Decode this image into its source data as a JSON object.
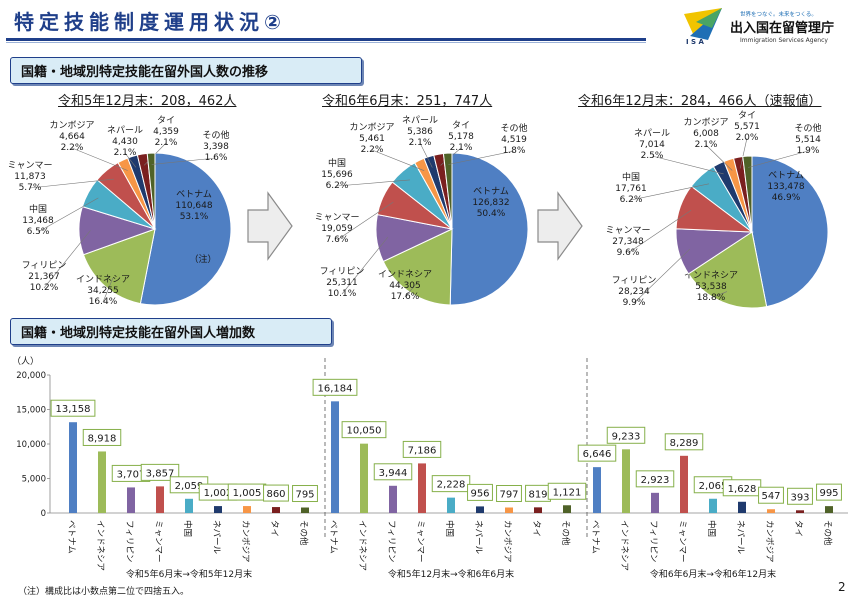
{
  "header": {
    "title": "特定技能制度運用状況②",
    "logo": {
      "letters": "I S A",
      "tagline": "世界をつなぐ。未来をつくる。",
      "name": "出入国在留管理庁",
      "english": "Immigration Services Agency"
    }
  },
  "section1_title": "国籍・地域別特定技能在留外国人数の推移",
  "section2_title": "国籍・地域別特定技能在留外国人増加数",
  "footnote": "（注）構成比は小数点第二位で四捨五入。",
  "page_number": "2",
  "colors": {
    "ベトナム": "#4f7fc3",
    "インドネシア": "#9dbb59",
    "フィリピン": "#8064a2",
    "ミャンマー": "#c0504d",
    "中国": "#4aacc6",
    "ネパール": "#1f3a6d",
    "カンボジア": "#f79646",
    "タイ": "#7a1f1f",
    "その他": "#4f6228"
  },
  "chart_data": [
    {
      "type": "pie",
      "title": "令和5年12月末：208，462人",
      "note": "（注）",
      "slices": [
        {
          "name": "ベトナム",
          "value": 110648,
          "share": "53.1%",
          "value_label": "110,648"
        },
        {
          "name": "インドネシア",
          "value": 34255,
          "share": "16.4%",
          "value_label": "34,255"
        },
        {
          "name": "フィリピン",
          "value": 21367,
          "share": "10.2%",
          "value_label": "21,367"
        },
        {
          "name": "中国",
          "value": 13468,
          "share": "6.5%",
          "value_label": "13,468"
        },
        {
          "name": "ミャンマー",
          "value": 11873,
          "share": "5.7%",
          "value_label": "11,873"
        },
        {
          "name": "カンボジア",
          "value": 4664,
          "share": "2.2%",
          "value_label": "4,664"
        },
        {
          "name": "ネパール",
          "value": 4430,
          "share": "2.1%",
          "value_label": "4,430"
        },
        {
          "name": "タイ",
          "value": 4359,
          "share": "2.1%",
          "value_label": "4,359"
        },
        {
          "name": "その他",
          "value": 3398,
          "share": "1.6%",
          "value_label": "3,398"
        }
      ]
    },
    {
      "type": "pie",
      "title": "令和6年6月末：251，747人",
      "slices": [
        {
          "name": "ベトナム",
          "value": 126832,
          "share": "50.4%",
          "value_label": "126,832"
        },
        {
          "name": "インドネシア",
          "value": 44305,
          "share": "17.6%",
          "value_label": "44,305"
        },
        {
          "name": "フィリピン",
          "value": 25311,
          "share": "10.1%",
          "value_label": "25,311"
        },
        {
          "name": "ミャンマー",
          "value": 19059,
          "share": "7.6%",
          "value_label": "19,059"
        },
        {
          "name": "中国",
          "value": 15696,
          "share": "6.2%",
          "value_label": "15,696"
        },
        {
          "name": "カンボジア",
          "value": 5461,
          "share": "2.2%",
          "value_label": "5,461"
        },
        {
          "name": "ネパール",
          "value": 5386,
          "share": "2.1%",
          "value_label": "5,386"
        },
        {
          "name": "タイ",
          "value": 5178,
          "share": "2.1%",
          "value_label": "5,178"
        },
        {
          "name": "その他",
          "value": 4519,
          "share": "1.8%",
          "value_label": "4,519"
        }
      ]
    },
    {
      "type": "pie",
      "title": "令和6年12月末：284，466人（速報値）",
      "slices": [
        {
          "name": "ベトナム",
          "value": 133478,
          "share": "46.9%",
          "value_label": "133,478"
        },
        {
          "name": "インドネシア",
          "value": 53538,
          "share": "18.8%",
          "value_label": "53,538"
        },
        {
          "name": "フィリピン",
          "value": 28234,
          "share": "9.9%",
          "value_label": "28,234"
        },
        {
          "name": "ミャンマー",
          "value": 27348,
          "share": "9.6%",
          "value_label": "27,348"
        },
        {
          "name": "中国",
          "value": 17761,
          "share": "6.2%",
          "value_label": "17,761"
        },
        {
          "name": "ネパール",
          "value": 7014,
          "share": "2.5%",
          "value_label": "7,014"
        },
        {
          "name": "カンボジア",
          "value": 6008,
          "share": "2.1%",
          "value_label": "6,008"
        },
        {
          "name": "タイ",
          "value": 5571,
          "share": "2.0%",
          "value_label": "5,571"
        },
        {
          "name": "その他",
          "value": 5514,
          "share": "1.9%",
          "value_label": "5,514"
        }
      ]
    },
    {
      "type": "bar",
      "ylabel": "（人）",
      "ylim": [
        0,
        20000
      ],
      "yticks": [
        "0",
        "5,000",
        "10,000",
        "15,000",
        "20,000"
      ],
      "categories": [
        "ベトナム",
        "インドネシア",
        "フィリピン",
        "ミャンマー",
        "中国",
        "ネパール",
        "カンボジア",
        "タイ",
        "その他"
      ],
      "groups": [
        {
          "name": "令和5年6月末→令和5年12月末",
          "values": [
            13158,
            8918,
            3707,
            3857,
            2059,
            1002,
            1005,
            860,
            795
          ],
          "value_labels": [
            "13,158",
            "8,918",
            "3,707",
            "3,857",
            "2,059",
            "1,002",
            "1,005",
            "860",
            "795"
          ]
        },
        {
          "name": "令和5年12月末→令和6年6月末",
          "values": [
            16184,
            10050,
            3944,
            7186,
            2228,
            956,
            797,
            819,
            1121
          ],
          "value_labels": [
            "16,184",
            "10,050",
            "3,944",
            "7,186",
            "2,228",
            "956",
            "797",
            "819",
            "1,121"
          ]
        },
        {
          "name": "令和6年6月末→令和6年12月末",
          "values": [
            6646,
            9233,
            2923,
            8289,
            2065,
            1628,
            547,
            393,
            995
          ],
          "value_labels": [
            "6,646",
            "9,233",
            "2,923",
            "8,289",
            "2,065",
            "1,628",
            "547",
            "393",
            "995"
          ]
        }
      ]
    }
  ]
}
